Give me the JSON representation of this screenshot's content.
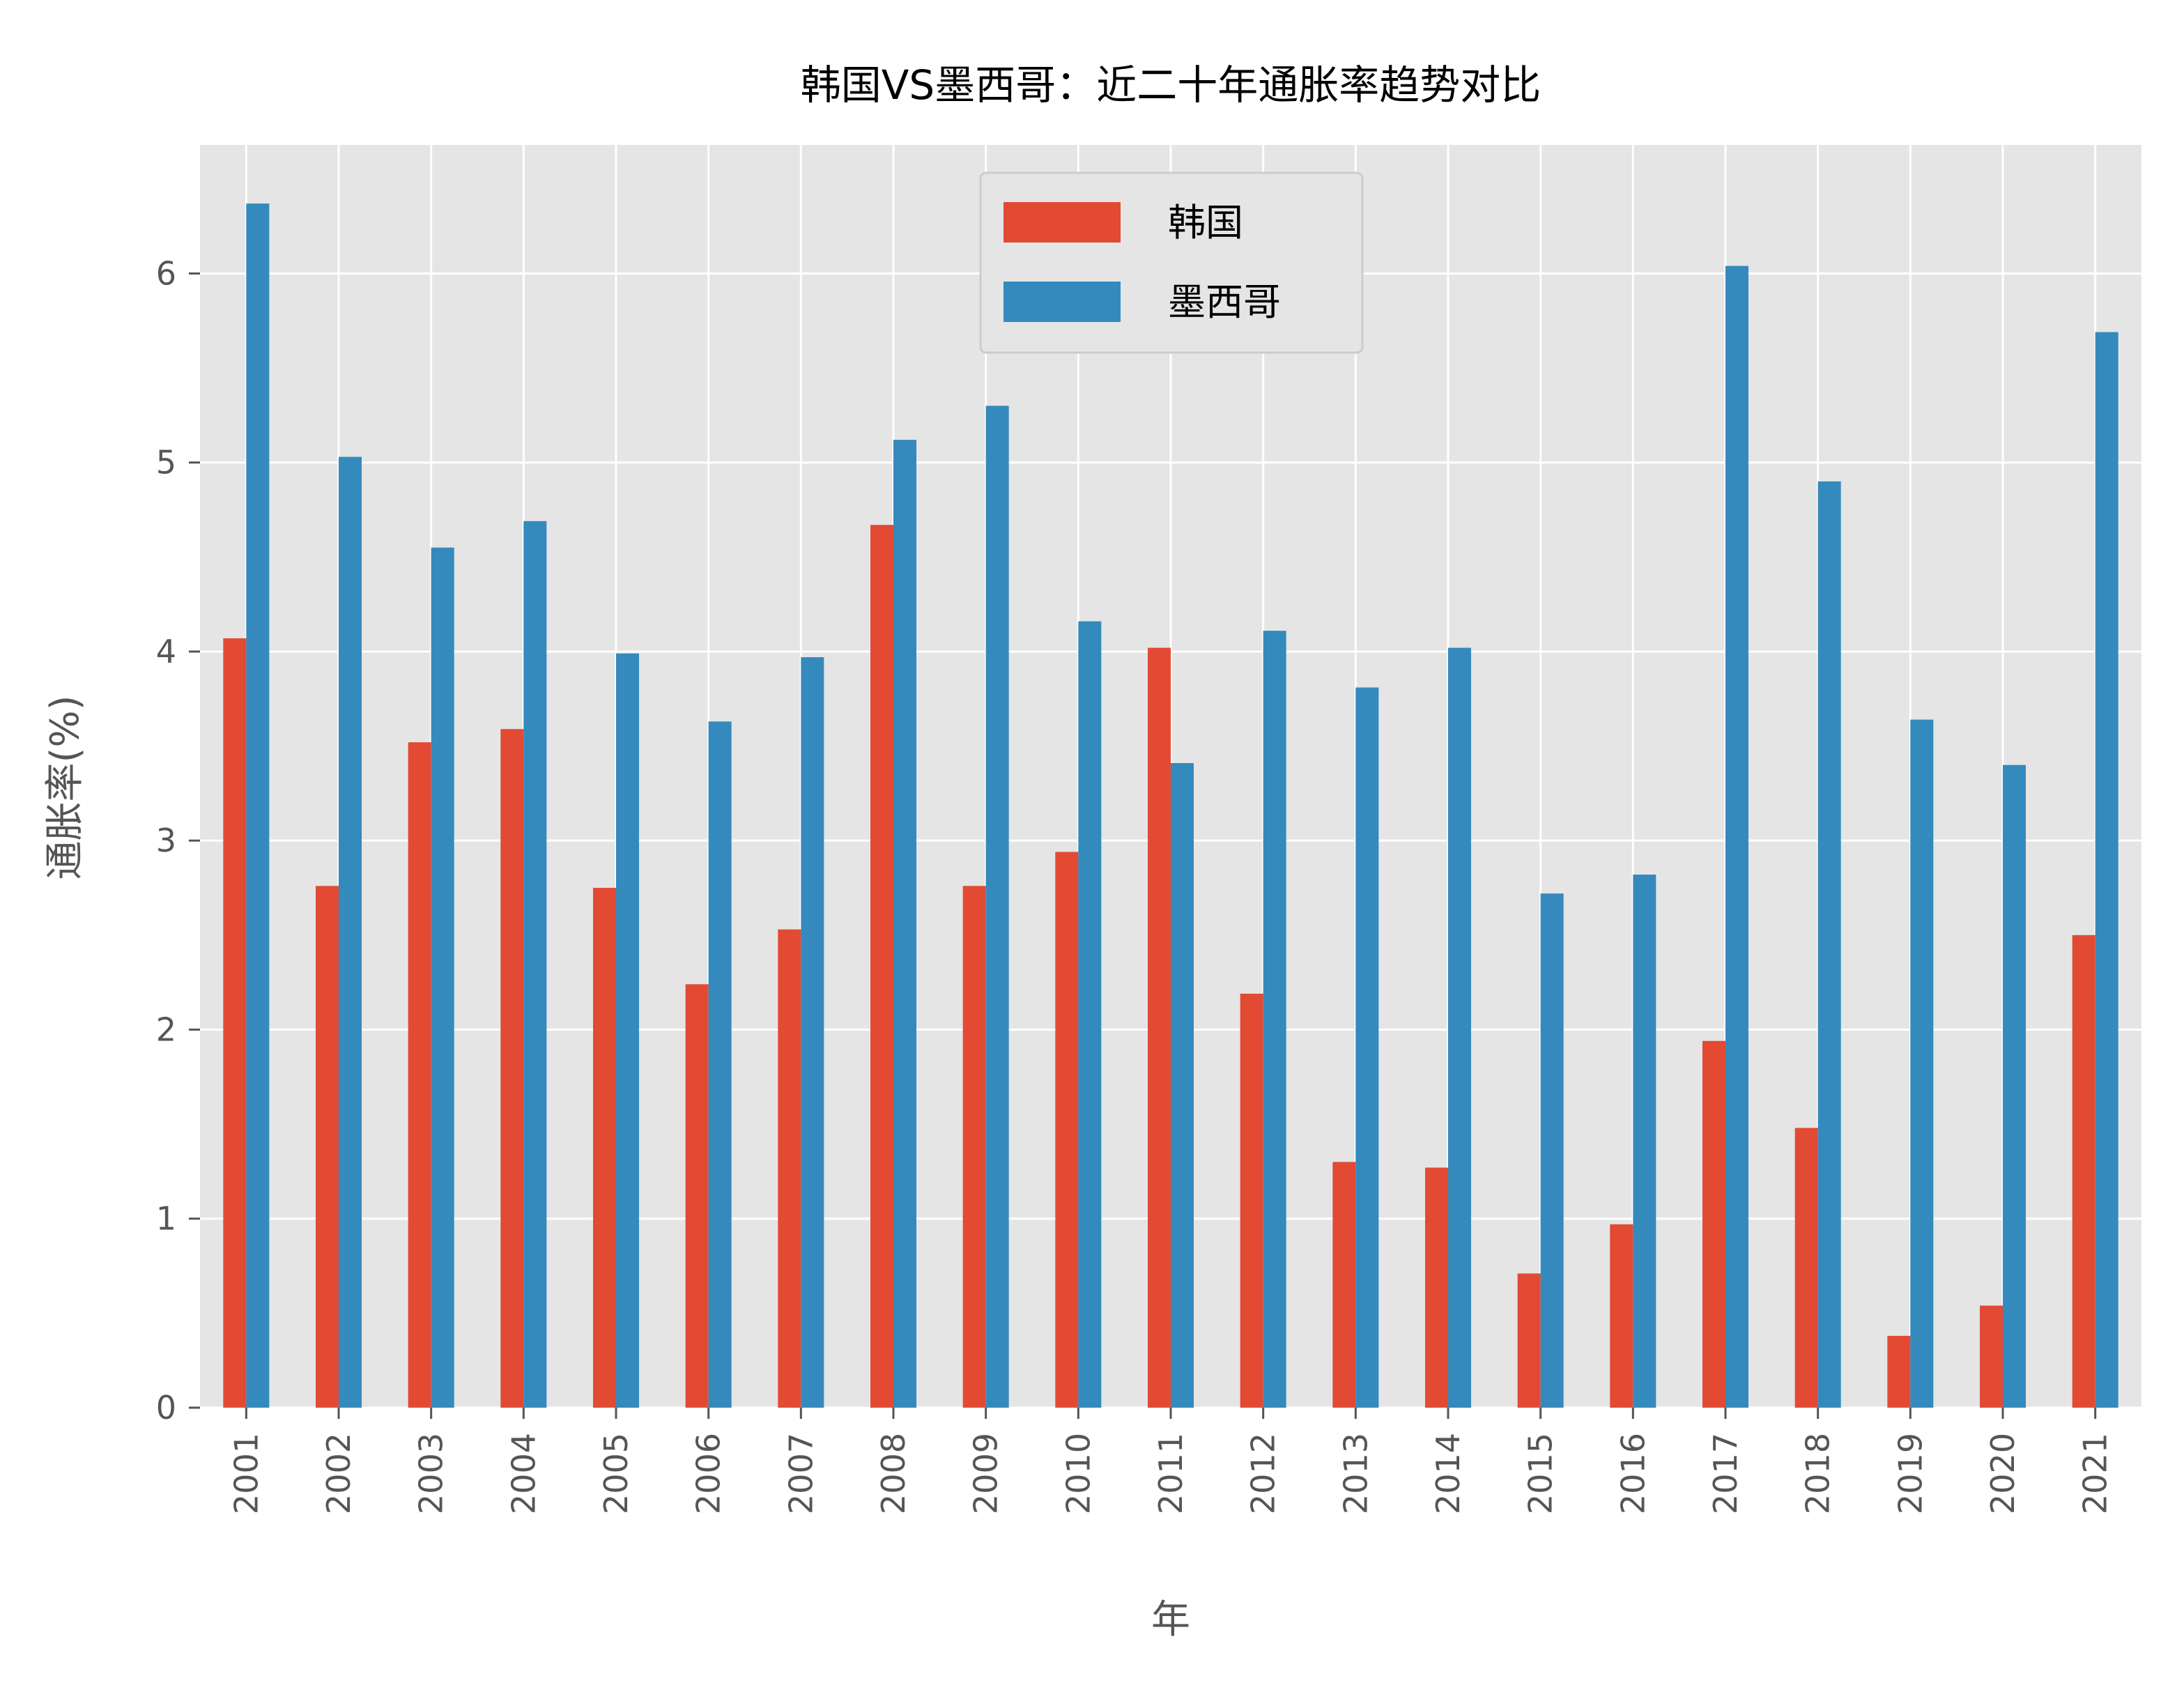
{
  "chart_data": {
    "type": "bar",
    "title": "韩国VS墨西哥：近二十年通胀率趋势对比",
    "xlabel": "年",
    "ylabel": "通胀率(%)",
    "categories": [
      "2001",
      "2002",
      "2003",
      "2004",
      "2005",
      "2006",
      "2007",
      "2008",
      "2009",
      "2010",
      "2011",
      "2012",
      "2013",
      "2014",
      "2015",
      "2016",
      "2017",
      "2018",
      "2019",
      "2020",
      "2021"
    ],
    "y_ticks": [
      "0",
      "1",
      "2",
      "3",
      "4",
      "5",
      "6"
    ],
    "ylim": [
      0,
      6.68
    ],
    "grid": true,
    "legend_position": "upper-center",
    "series": [
      {
        "name": "韩国",
        "color": "#E24A33",
        "values": [
          4.07,
          2.76,
          3.52,
          3.59,
          2.75,
          2.24,
          2.53,
          4.67,
          2.76,
          2.94,
          4.02,
          2.19,
          1.3,
          1.27,
          0.71,
          0.97,
          1.94,
          1.48,
          0.38,
          0.54,
          2.5
        ]
      },
      {
        "name": "墨西哥",
        "color": "#348ABD",
        "values": [
          6.37,
          5.03,
          4.55,
          4.69,
          3.99,
          3.63,
          3.97,
          5.12,
          5.3,
          4.16,
          3.41,
          4.11,
          3.81,
          4.02,
          2.72,
          2.82,
          6.04,
          4.9,
          3.64,
          3.4,
          5.69
        ]
      }
    ],
    "plot_background": "#E5E5E5",
    "grid_color": "#FFFFFF"
  }
}
